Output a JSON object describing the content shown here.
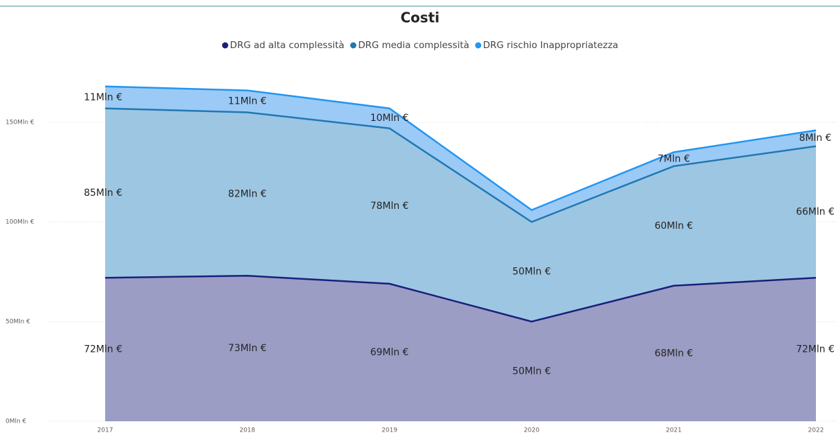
{
  "chart_data": {
    "type": "stacked_area",
    "title": "Costi",
    "categories": [
      "2017",
      "2018",
      "2019",
      "2020",
      "2021",
      "2022"
    ],
    "series": [
      {
        "name": "DRG ad alta complessità",
        "color": "#1a1f7a",
        "fill_color": "#9b9dc5",
        "values": [
          72,
          73,
          69,
          50,
          68,
          72
        ],
        "value_labels": [
          "72Mln €",
          "73Mln €",
          "69Mln €",
          "50Mln €",
          "68Mln €",
          "72Mln €"
        ]
      },
      {
        "name": "DRG media complessità",
        "color": "#1f78b4",
        "fill_color": "#9dc6e2",
        "values": [
          85,
          82,
          78,
          50,
          60,
          66
        ],
        "value_labels": [
          "85Mln €",
          "82Mln €",
          "78Mln €",
          "50Mln €",
          "60Mln €",
          "66Mln €"
        ]
      },
      {
        "name": "DRG rischio Inappropriatezza",
        "color": "#2196f3",
        "fill_color": "#9ccaf6",
        "values": [
          11,
          11,
          10,
          6,
          7,
          8
        ],
        "value_labels": [
          "11Mln €",
          "11Mln €",
          "10Mln €",
          null,
          "7Mln €",
          "8Mln €"
        ]
      }
    ],
    "ylim": [
      0,
      170
    ],
    "yticks": [
      {
        "value": 0,
        "label": "0Mln €"
      },
      {
        "value": 50,
        "label": "50Mln €"
      },
      {
        "value": 100,
        "label": "100Mln €"
      },
      {
        "value": 150,
        "label": "150Mln €"
      }
    ],
    "grid": true
  }
}
